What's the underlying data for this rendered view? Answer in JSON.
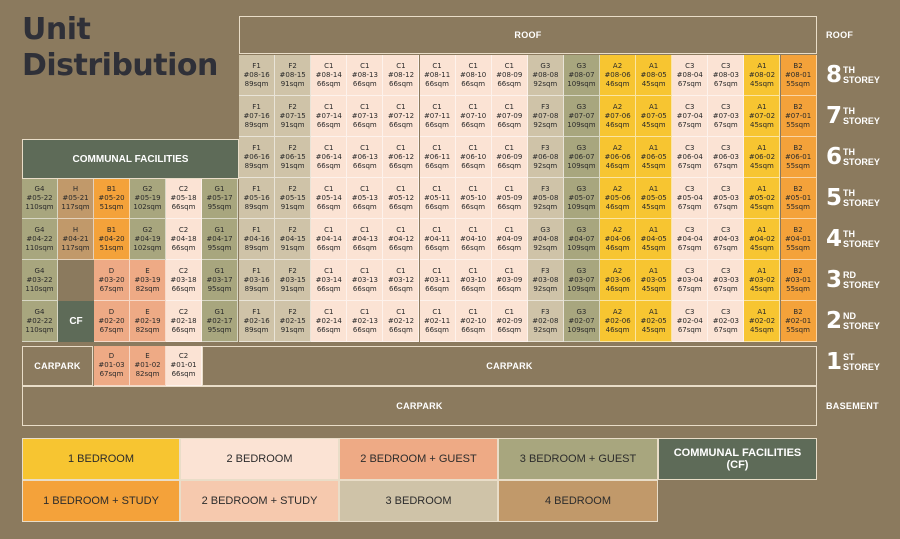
{
  "title": {
    "line1": "Unit",
    "line2": "Distribution"
  },
  "labels": {
    "roof": "ROOF",
    "roof_side": "ROOF",
    "carpark": "CARPARK",
    "basement_carpark": "CARPARK",
    "basement": "BASEMENT",
    "communal_facilities": "COMMUNAL FACILITIES",
    "cf": "CF"
  },
  "colors": {
    "background": "#8b7a5e",
    "1_bedroom": "#f7c531",
    "1_bedroom_study": "#f4a23a",
    "2_bedroom": "#fbe3d4",
    "2_bedroom_study": "#f6c9ae",
    "2_bedroom_guest": "#eeaa85",
    "3_bedroom": "#cfc3a8",
    "3_bedroom_guest": "#a8a67e",
    "4_bedroom": "#c1996a",
    "communal": "#5e6b58"
  },
  "storeys": [
    {
      "num": "8",
      "suffix": "TH"
    },
    {
      "num": "7",
      "suffix": "TH"
    },
    {
      "num": "6",
      "suffix": "TH"
    },
    {
      "num": "5",
      "suffix": "TH"
    },
    {
      "num": "4",
      "suffix": "TH"
    },
    {
      "num": "3",
      "suffix": "RD"
    },
    {
      "num": "2",
      "suffix": "ND"
    },
    {
      "num": "1",
      "suffix": "ST"
    }
  ],
  "storey_word": "STOREY",
  "block_columns": [
    {
      "type": "F1",
      "unit": "16",
      "size": "89sqm",
      "cat": "3_bedroom"
    },
    {
      "type": "F2",
      "unit": "15",
      "size": "91sqm",
      "cat": "3_bedroom"
    },
    {
      "type": "C1",
      "unit": "14",
      "size": "66sqm",
      "cat": "2_bedroom"
    },
    {
      "type": "C1",
      "unit": "13",
      "size": "66sqm",
      "cat": "2_bedroom"
    },
    {
      "type": "C1",
      "unit": "12",
      "size": "66sqm",
      "cat": "2_bedroom"
    },
    {
      "type": "C1",
      "unit": "11",
      "size": "66sqm",
      "cat": "2_bedroom"
    },
    {
      "type": "C1",
      "unit": "10",
      "size": "66sqm",
      "cat": "2_bedroom"
    },
    {
      "type": "C1",
      "unit": "09",
      "size": "66sqm",
      "cat": "2_bedroom"
    },
    {
      "type": "F3",
      "unit": "08",
      "size": "92sqm",
      "cat": "3_bedroom"
    },
    {
      "type": "G3",
      "unit": "07",
      "size": "109sqm",
      "cat": "3_bedroom_guest"
    },
    {
      "type": "A2",
      "unit": "06",
      "size": "46sqm",
      "cat": "1_bedroom"
    },
    {
      "type": "A1",
      "unit": "05",
      "size": "45sqm",
      "cat": "1_bedroom"
    },
    {
      "type": "C3",
      "unit": "04",
      "size": "67sqm",
      "cat": "2_bedroom"
    },
    {
      "type": "C3",
      "unit": "03",
      "size": "67sqm",
      "cat": "2_bedroom"
    },
    {
      "type": "A1",
      "unit": "02",
      "size": "45sqm",
      "cat": "1_bedroom"
    },
    {
      "type": "B2",
      "unit": "01",
      "size": "55sqm",
      "cat": "1_bedroom_study"
    }
  ],
  "block_floors": [
    "08",
    "07",
    "06",
    "05",
    "04",
    "03",
    "02"
  ],
  "block_overrides": {
    "08-08": {
      "type": "G3",
      "size": "92sqm",
      "cat": "3_bedroom"
    },
    "04-08": {
      "type": "G3",
      "size": "92sqm",
      "cat": "3_bedroom"
    },
    "05-06": {
      "cat": "1_bedroom"
    }
  },
  "left_rows": {
    "05": [
      {
        "type": "G4",
        "code": "#05-22",
        "size": "110sqm",
        "cat": "3_bedroom_guest"
      },
      {
        "type": "H",
        "code": "#05-21",
        "size": "117sqm",
        "cat": "4_bedroom"
      },
      {
        "type": "B1",
        "code": "#05-20",
        "size": "51sqm",
        "cat": "1_bedroom_study"
      },
      {
        "type": "G2",
        "code": "#05-19",
        "size": "102sqm",
        "cat": "3_bedroom_guest"
      },
      {
        "type": "C2",
        "code": "#05-18",
        "size": "66sqm",
        "cat": "2_bedroom"
      },
      {
        "type": "G1",
        "code": "#05-17",
        "size": "95sqm",
        "cat": "3_bedroom_guest"
      }
    ],
    "04": [
      {
        "type": "G4",
        "code": "#04-22",
        "size": "110sqm",
        "cat": "3_bedroom_guest"
      },
      {
        "type": "H",
        "code": "#04-21",
        "size": "117sqm",
        "cat": "4_bedroom"
      },
      {
        "type": "B1",
        "code": "#04-20",
        "size": "51sqm",
        "cat": "1_bedroom_study"
      },
      {
        "type": "G2",
        "code": "#04-19",
        "size": "102sqm",
        "cat": "3_bedroom_guest"
      },
      {
        "type": "C2",
        "code": "#04-18",
        "size": "66sqm",
        "cat": "2_bedroom"
      },
      {
        "type": "G1",
        "code": "#04-17",
        "size": "95sqm",
        "cat": "3_bedroom_guest"
      }
    ],
    "03": [
      {
        "type": "G4",
        "code": "#03-22",
        "size": "110sqm",
        "cat": "3_bedroom_guest"
      },
      null,
      {
        "type": "D",
        "code": "#03-20",
        "size": "67sqm",
        "cat": "2_bedroom_guest"
      },
      {
        "type": "E",
        "code": "#03-19",
        "size": "82sqm",
        "cat": "2_bedroom_guest"
      },
      {
        "type": "C2",
        "code": "#03-18",
        "size": "66sqm",
        "cat": "2_bedroom"
      },
      {
        "type": "G1",
        "code": "#03-17",
        "size": "95sqm",
        "cat": "3_bedroom_guest"
      }
    ],
    "02": [
      {
        "type": "G4",
        "code": "#02-22",
        "size": "110sqm",
        "cat": "3_bedroom_guest"
      },
      "CF",
      {
        "type": "D",
        "code": "#02-20",
        "size": "67sqm",
        "cat": "2_bedroom_guest"
      },
      {
        "type": "E",
        "code": "#02-19",
        "size": "82sqm",
        "cat": "2_bedroom_guest"
      },
      {
        "type": "C2",
        "code": "#02-18",
        "size": "66sqm",
        "cat": "2_bedroom"
      },
      {
        "type": "G1",
        "code": "#02-17",
        "size": "95sqm",
        "cat": "3_bedroom_guest"
      }
    ]
  },
  "first_storey_units": [
    {
      "type": "D",
      "code": "#01-03",
      "size": "67sqm",
      "cat": "2_bedroom_guest"
    },
    {
      "type": "E",
      "code": "#01-02",
      "size": "82sqm",
      "cat": "2_bedroom_guest"
    },
    {
      "type": "C2",
      "code": "#01-01",
      "size": "66sqm",
      "cat": "2_bedroom"
    }
  ],
  "legend": [
    {
      "label": "1 BEDROOM",
      "cat": "1_bedroom"
    },
    {
      "label": "2 BEDROOM",
      "cat": "2_bedroom"
    },
    {
      "label": "2 BEDROOM + GUEST",
      "cat": "2_bedroom_guest"
    },
    {
      "label": "3 BEDROOM + GUEST",
      "cat": "3_bedroom_guest"
    },
    {
      "label": "COMMUNAL FACILITIES\n(CF)",
      "cat": "communal"
    },
    {
      "label": "1 BEDROOM + STUDY",
      "cat": "1_bedroom_study"
    },
    {
      "label": "2 BEDROOM + STUDY",
      "cat": "2_bedroom_study"
    },
    {
      "label": "3 BEDROOM",
      "cat": "3_bedroom"
    },
    {
      "label": "4 BEDROOM",
      "cat": "4_bedroom"
    }
  ]
}
